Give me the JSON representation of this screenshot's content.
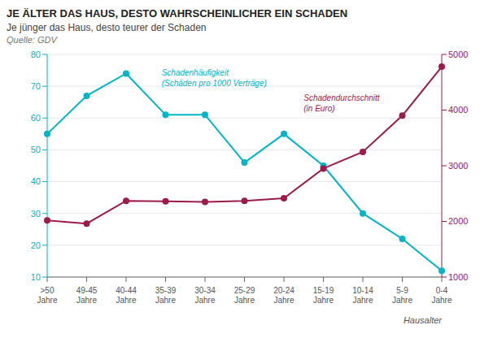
{
  "chart_data": {
    "type": "line",
    "title": "JE ÄLTER DAS HAUS, DESTO WAHRSCHEINLICHER EIN SCHADEN",
    "subtitle": "Je jünger das Haus, desto teurer der Schaden",
    "source": "Quelle: GDV",
    "xlabel": "Hausalter",
    "categories": [
      ">50\nJahre",
      "49-45\nJahre",
      "40-44\nJahre",
      "35-39\nJahre",
      "30-34\nJahre",
      "25-29\nJahre",
      "20-24\nJahre",
      "15-19\nJahre",
      "10-14\nJahre",
      "5-9\nJahre",
      "0-4\nJahre"
    ],
    "series": [
      {
        "color": "#00B4C8",
        "values": [
          55,
          67,
          74,
          61,
          61,
          46,
          55,
          45,
          30,
          22,
          12
        ],
        "axis": "y",
        "marker": "circle"
      },
      {
        "color": "#9B1B4B",
        "values": [
          2020,
          1960,
          2370,
          2360,
          2350,
          2370,
          2415,
          2950,
          3250,
          3900,
          4780
        ],
        "axis": "y2",
        "marker": "circle"
      }
    ],
    "annotations": [
      {
        "text": "Schadenhäufigkeit\n(Schäden pro 1000 Verträge)",
        "color": "#00B4C8"
      },
      {
        "text": "Schadendurchschnitt\n(in Euro)",
        "color": "#9B1B4B"
      }
    ],
    "ylim": [
      10,
      80
    ],
    "yticks": [
      10,
      20,
      30,
      40,
      50,
      60,
      70,
      80
    ],
    "y2lim": [
      1000,
      5000
    ],
    "y2ticks": [
      1000,
      2000,
      3000,
      4000,
      5000
    ],
    "grid": true
  }
}
